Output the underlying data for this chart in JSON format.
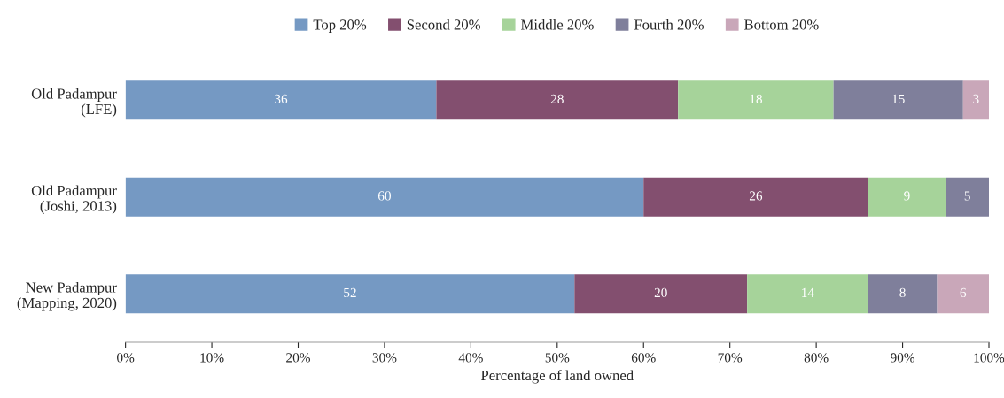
{
  "chart_data": {
    "type": "bar",
    "orientation": "horizontal",
    "stacked": true,
    "data_labels": true,
    "legend": "top",
    "grid": false,
    "xlabel": "Percentage of land owned",
    "categories": [
      "Old Padampur\n(LFE)",
      "Old Padampur\n(Joshi, 2013)",
      "New Padampur\n(Mapping, 2020)"
    ],
    "xlim": [
      0,
      100
    ],
    "xticks": [
      {
        "value": 0,
        "label": "0%"
      },
      {
        "value": 10,
        "label": "10%"
      },
      {
        "value": 20,
        "label": "20%"
      },
      {
        "value": 30,
        "label": "30%"
      },
      {
        "value": 40,
        "label": "40%"
      },
      {
        "value": 50,
        "label": "50%"
      },
      {
        "value": 60,
        "label": "60%"
      },
      {
        "value": 70,
        "label": "70%"
      },
      {
        "value": 80,
        "label": "80%"
      },
      {
        "value": 90,
        "label": "90%"
      },
      {
        "value": 100,
        "label": "100%"
      }
    ],
    "series": [
      {
        "name": "Top 20%",
        "color": "#7599c3",
        "values": [
          36,
          60,
          52
        ]
      },
      {
        "name": "Second 20%",
        "color": "#834f6f",
        "values": [
          28,
          26,
          20
        ]
      },
      {
        "name": "Middle 20%",
        "color": "#a6d39a",
        "values": [
          18,
          9,
          14
        ]
      },
      {
        "name": "Fourth 20%",
        "color": "#7f7f9b",
        "values": [
          15,
          5,
          8
        ]
      },
      {
        "name": "Bottom 20%",
        "color": "#c9a7b9",
        "values": [
          3,
          null,
          6
        ]
      }
    ]
  }
}
